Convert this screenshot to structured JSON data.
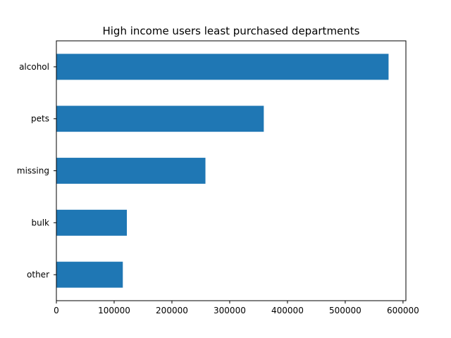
{
  "chart_data": {
    "type": "bar",
    "orientation": "horizontal",
    "title": "High income users least purchased departments",
    "xlabel": "",
    "ylabel": "",
    "categories": [
      "alcohol",
      "pets",
      "missing",
      "bulk",
      "other"
    ],
    "values": [
      575000,
      359000,
      258000,
      122000,
      115000
    ],
    "xlim": [
      0,
      605000
    ],
    "xticks": [
      0,
      100000,
      200000,
      300000,
      400000,
      500000,
      600000
    ],
    "xtick_labels": [
      "0",
      "100000",
      "200000",
      "300000",
      "400000",
      "500000",
      "600000"
    ],
    "grid": false,
    "legend": "none",
    "bar_color": "#1f77b4"
  }
}
